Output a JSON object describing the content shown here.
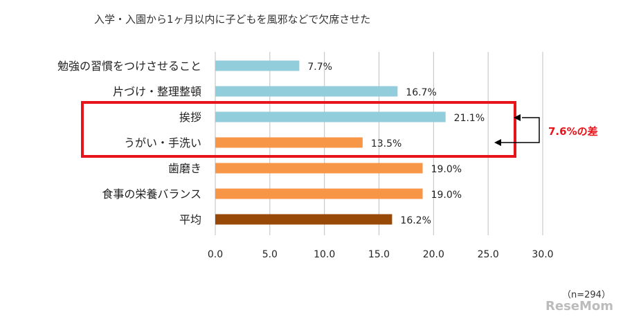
{
  "chart_data": {
    "type": "bar",
    "orientation": "horizontal",
    "title": "入学・入園から1ヶ月以内に子どもを風邪などで欠席させた",
    "categories": [
      "勉強の習慣をつけさせること",
      "片づけ・整理整頓",
      "挨拶",
      "うがい・手洗い",
      "歯磨き",
      "食事の栄養バランス",
      "平均"
    ],
    "values": [
      7.7,
      16.7,
      21.1,
      13.5,
      19.0,
      19.0,
      16.2
    ],
    "value_labels": [
      "7.7%",
      "16.7%",
      "21.1%",
      "13.5%",
      "19.0%",
      "19.0%",
      "16.2%"
    ],
    "bar_colors": [
      "#92cddc",
      "#92cddc",
      "#92cddc",
      "#f79646",
      "#f79646",
      "#f79646",
      "#984807"
    ],
    "xlim": [
      0,
      30
    ],
    "xticks": [
      0,
      5,
      10,
      15,
      20,
      25,
      30
    ],
    "xtick_labels": [
      "0.0",
      "5.0",
      "10.0",
      "15.0",
      "20.0",
      "25.0",
      "30.0"
    ],
    "grid": true,
    "annotation": {
      "text": "7.6%の差",
      "highlighted_categories": [
        "挨拶",
        "うがい・手洗い"
      ],
      "color": "#e8141b"
    },
    "note": "（n=294）"
  },
  "watermark": "ReseMom"
}
